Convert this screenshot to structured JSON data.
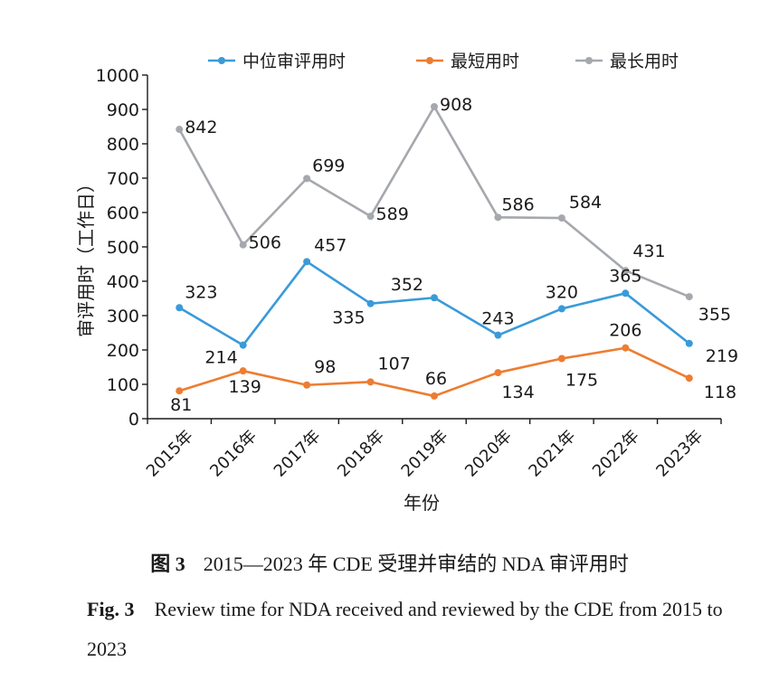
{
  "chart_data": {
    "type": "line",
    "categories": [
      "2015年",
      "2016年",
      "2017年",
      "2018年",
      "2019年",
      "2020年",
      "2021年",
      "2022年",
      "2023年"
    ],
    "series": [
      {
        "name": "中位审评用时",
        "color": "#3a9ad9",
        "values": [
          323,
          214,
          457,
          335,
          352,
          243,
          320,
          365,
          219
        ]
      },
      {
        "name": "最短用时",
        "color": "#ed7d31",
        "values": [
          81,
          139,
          98,
          107,
          66,
          134,
          175,
          206,
          118
        ]
      },
      {
        "name": "最长用时",
        "color": "#a5a8ad",
        "values": [
          842,
          506,
          699,
          589,
          908,
          586,
          584,
          431,
          355
        ]
      }
    ],
    "xlabel": "年份",
    "ylabel": "审评用时（工作日）",
    "ylim": [
      0,
      1000
    ],
    "yticks": [
      0,
      100,
      200,
      300,
      400,
      500,
      600,
      700,
      800,
      900,
      1000
    ],
    "legend": "top",
    "grid": false
  },
  "caption": {
    "zh_label": "图 3",
    "zh_text": "2015—2023 年 CDE 受理并审结的 NDA 审评用时",
    "en_label": "Fig. 3",
    "en_text": "Review time for NDA received and reviewed by the CDE from 2015 to 2023"
  }
}
